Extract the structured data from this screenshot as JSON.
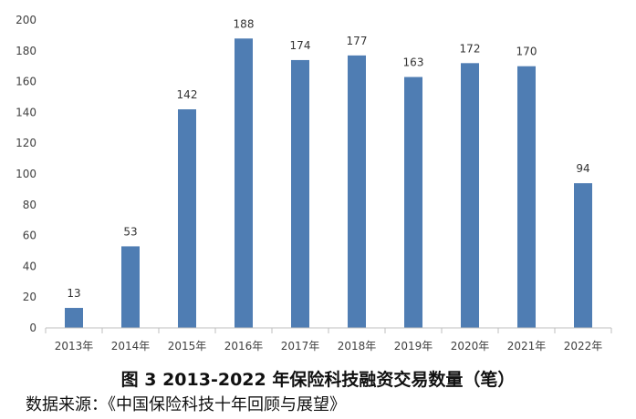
{
  "chart_data": {
    "type": "bar",
    "categories": [
      "2013年",
      "2014年",
      "2015年",
      "2016年",
      "2017年",
      "2018年",
      "2019年",
      "2020年",
      "2021年",
      "2022年"
    ],
    "values": [
      13,
      53,
      142,
      188,
      174,
      177,
      163,
      172,
      170,
      94
    ],
    "data_labels": [
      "13",
      "53",
      "142",
      "188",
      "174",
      "177",
      "163",
      "172",
      "170",
      "94"
    ],
    "ylim": [
      0,
      200
    ],
    "yticks": [
      0,
      20,
      40,
      60,
      80,
      100,
      120,
      140,
      160,
      180,
      200
    ],
    "grid": false,
    "bar_color": "#4f7db3",
    "title": "图 3 2013-2022 年保险科技融资交易数量（笔）",
    "xlabel": "",
    "ylabel": ""
  },
  "source": "数据来源：《中国保险科技十年回顾与展望》"
}
